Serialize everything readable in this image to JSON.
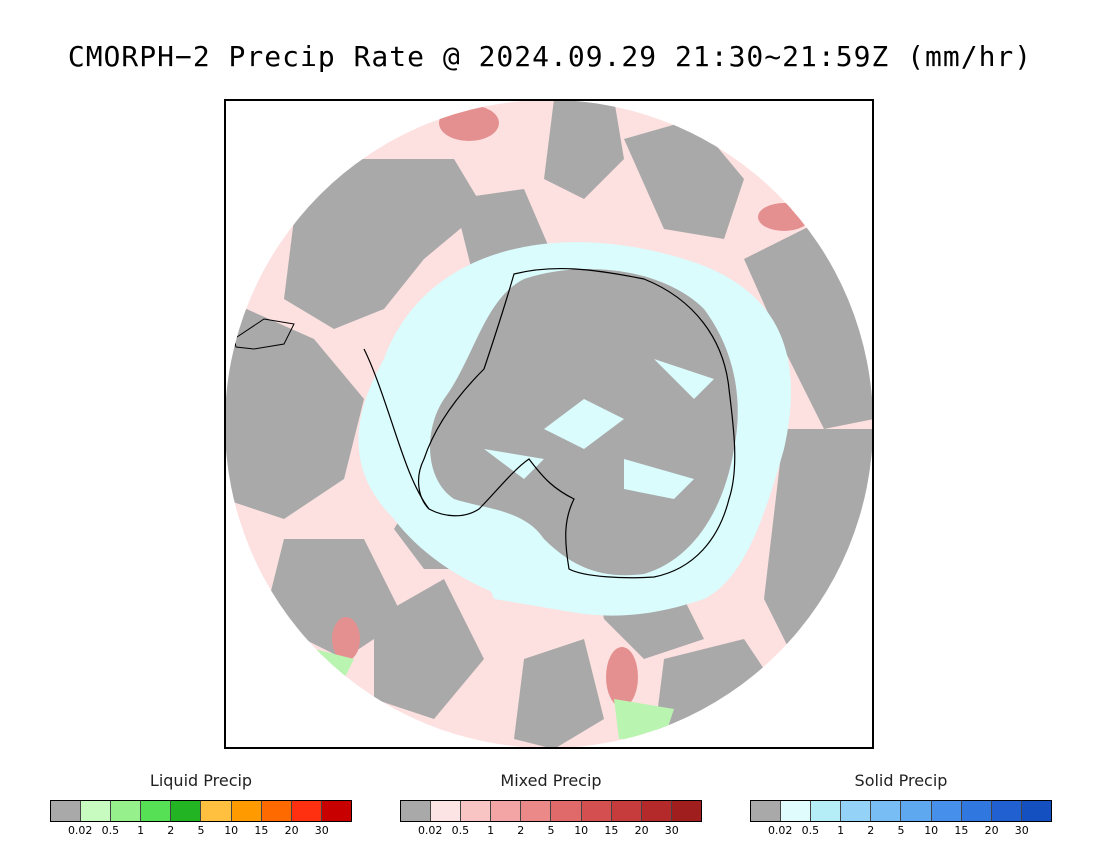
{
  "title": "CMORPH−2 Precip Rate @ 2024.09.29 21:30~21:59Z (mm/hr)",
  "map": {
    "projection": "south-polar-stereographic",
    "colors": {
      "no_precip": "#a9a9a9",
      "mixed_light": "#fde0e0",
      "mixed_mid": "#f3a0a0",
      "mixed_heavy": "#d85a5a",
      "solid_light": "#dafcfd",
      "solid_mid": "#b8eef7",
      "liquid": "#b9f5b0",
      "liquid_heavy": "#55dd55",
      "coast": "#000000"
    }
  },
  "legends": [
    {
      "title": "Liquid Precip",
      "colors": [
        "#a9a9a9",
        "#c8fbc0",
        "#96f08c",
        "#55e055",
        "#22b422",
        "#ffc040",
        "#ff9a00",
        "#ff6a00",
        "#ff3010",
        "#c80000"
      ],
      "ticks": [
        "0.02",
        "0.5",
        "1",
        "2",
        "5",
        "10",
        "15",
        "20",
        "30"
      ]
    },
    {
      "title": "Mixed Precip",
      "colors": [
        "#a9a9a9",
        "#fde4e4",
        "#f9c4c4",
        "#f3a4a4",
        "#eb8888",
        "#e06a6a",
        "#d45050",
        "#c63c3c",
        "#b42a2a",
        "#a01e1e"
      ],
      "ticks": [
        "0.02",
        "0.5",
        "1",
        "2",
        "5",
        "10",
        "15",
        "20",
        "30"
      ]
    },
    {
      "title": "Solid Precip",
      "colors": [
        "#a9a9a9",
        "#e0fcfd",
        "#b6eef8",
        "#94d2f8",
        "#78bef4",
        "#5ea8f0",
        "#4690ec",
        "#3078e0",
        "#2060d0",
        "#1450c0"
      ],
      "ticks": [
        "0.02",
        "0.5",
        "1",
        "2",
        "5",
        "10",
        "15",
        "20",
        "30"
      ]
    }
  ]
}
